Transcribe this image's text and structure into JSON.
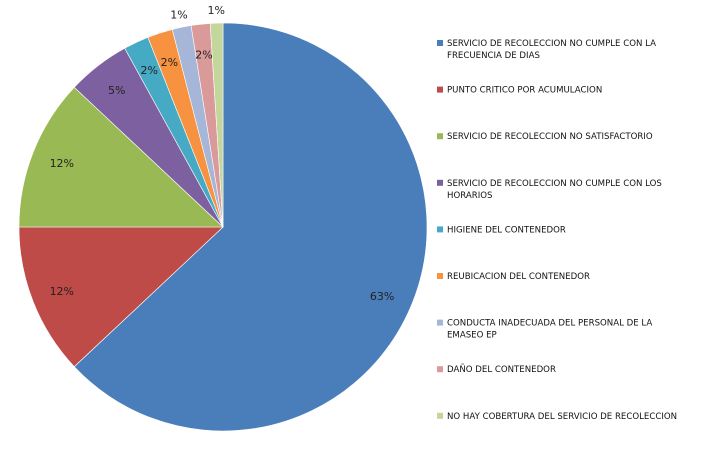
{
  "chart_data": {
    "type": "pie",
    "title": "",
    "legend_position": "right",
    "categories": [
      "SERVICIO DE RECOLECCION NO CUMPLE CON LA FRECUENCIA DE DIAS",
      "PUNTO CRITICO POR ACUMULACION",
      "SERVICIO DE RECOLECCION NO SATISFACTORIO",
      "SERVICIO DE RECOLECCION NO CUMPLE CON LOS HORARIOS",
      "HIGIENE DEL CONTENEDOR",
      "REUBICACION DEL CONTENEDOR",
      "CONDUCTA INADECUADA DEL PERSONAL DE LA EMASEO EP",
      "DAÑO DEL CONTENEDOR",
      "NO HAY COBERTURA DEL SERVICIO DE RECOLECCION"
    ],
    "legend_lines": [
      [
        "SERVICIO DE RECOLECCION NO CUMPLE CON LA",
        "FRECUENCIA DE DIAS"
      ],
      [
        "PUNTO CRITICO POR ACUMULACION"
      ],
      [
        "SERVICIO DE RECOLECCION NO SATISFACTORIO"
      ],
      [
        "SERVICIO DE RECOLECCION NO CUMPLE CON LOS",
        "HORARIOS"
      ],
      [
        "HIGIENE DEL CONTENEDOR"
      ],
      [
        "REUBICACION DEL CONTENEDOR"
      ],
      [
        "CONDUCTA INADECUADA DEL PERSONAL DE LA",
        "EMASEO EP"
      ],
      [
        "DAÑO DEL CONTENEDOR"
      ],
      [
        "NO HAY COBERTURA DEL SERVICIO DE RECOLECCION"
      ]
    ],
    "values": [
      63,
      12,
      12,
      5,
      2,
      2,
      1.5,
      1.5,
      1
    ],
    "data_labels": [
      "63%",
      "12%",
      "12%",
      "5%",
      "2%",
      "2%",
      "1%",
      "2%",
      "1%"
    ],
    "colors": [
      "#4A7EBB",
      "#BE4B48",
      "#98B954",
      "#7D60A0",
      "#46AAC5",
      "#F69240",
      "#A5B6D8",
      "#DA9A9A",
      "#C3D69B"
    ],
    "label_position": [
      "inside",
      "inside",
      "inside",
      "inside",
      "inside",
      "inside",
      "outside",
      "inside",
      "outside"
    ]
  }
}
